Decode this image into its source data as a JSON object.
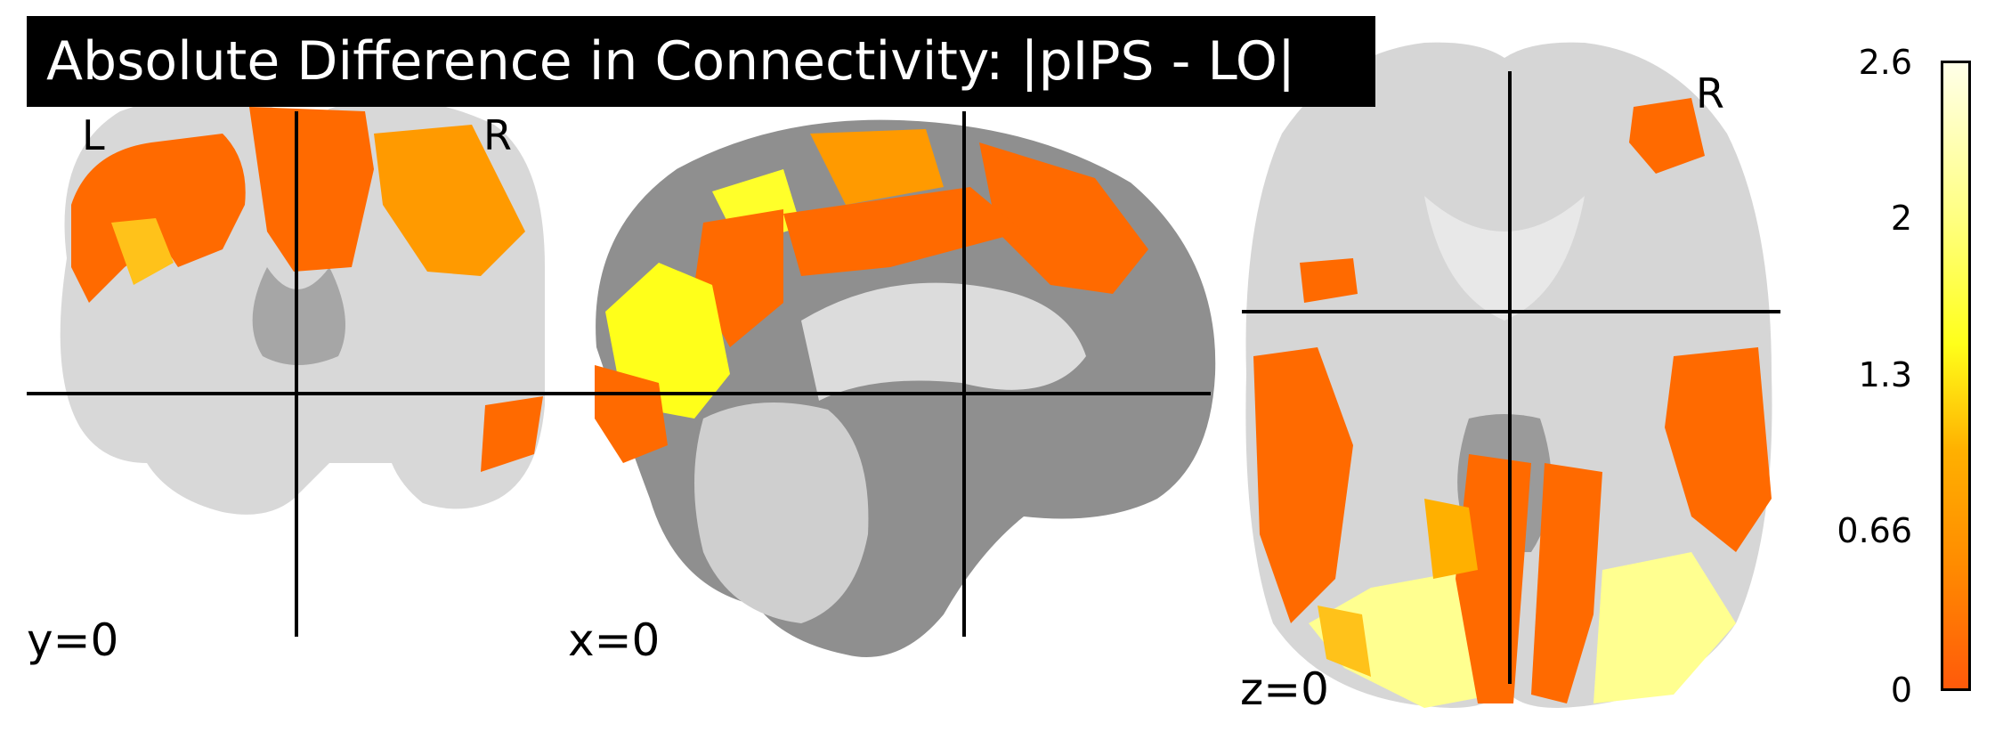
{
  "title": "Absolute Difference in Connectivity: |pIPS - LO|",
  "views": {
    "coronal": {
      "left_label": "L",
      "right_label": "R",
      "coord": "y=0"
    },
    "sagittal": {
      "coord": "x=0"
    },
    "axial": {
      "right_label": "R",
      "coord": "z=0"
    }
  },
  "colorbar": {
    "ticks": [
      "2.6",
      "2",
      "1.3",
      "0.66",
      "0"
    ],
    "colormap": [
      "#ff5a0a",
      "#ff8c00",
      "#ffb000",
      "#ffff1a",
      "#ffff80",
      "#ffffe8"
    ]
  },
  "colors": {
    "brain_light": "#d9d9d9",
    "brain_dark": "#8c8c8c",
    "activation": "#ff6a00"
  }
}
